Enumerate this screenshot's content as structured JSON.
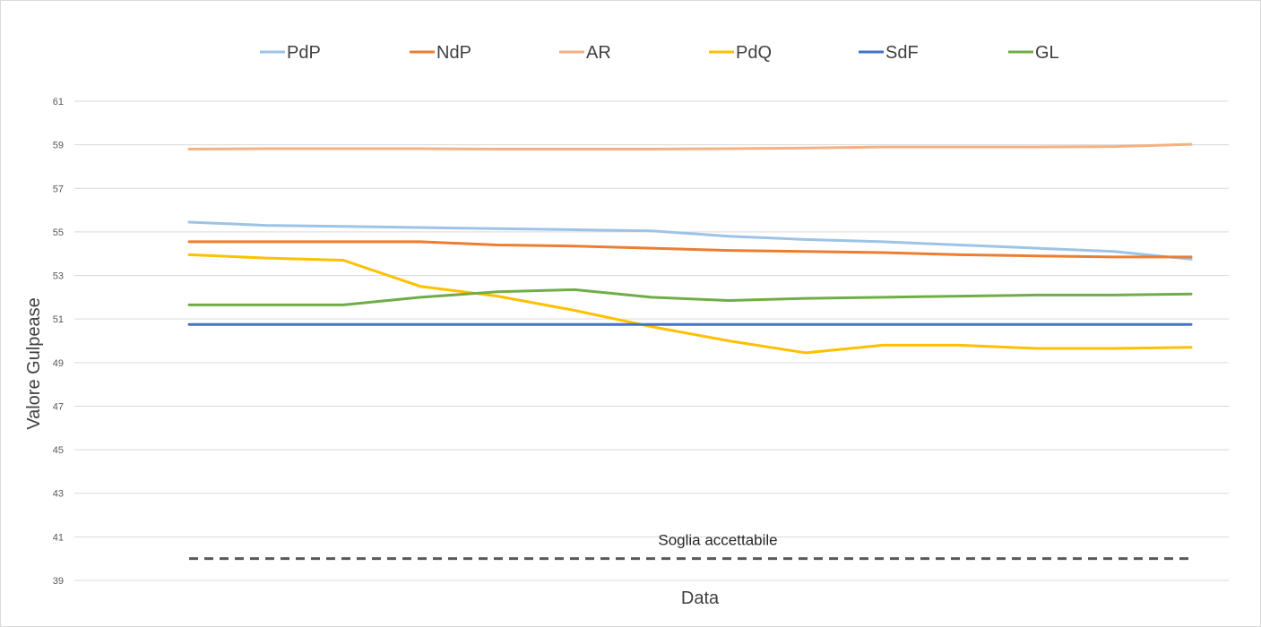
{
  "chart_data": {
    "type": "line",
    "title": "",
    "xlabel": "Data",
    "ylabel": "Valore Gulpease",
    "ylim": [
      39,
      61
    ],
    "yticks": [
      39,
      41,
      43,
      45,
      47,
      49,
      51,
      53,
      55,
      57,
      59,
      61
    ],
    "grid": "horizontal",
    "legend_position": "top",
    "x": [
      1,
      2,
      3,
      4,
      5,
      6,
      7,
      8,
      9,
      10,
      11,
      12,
      13,
      14
    ],
    "series": [
      {
        "name": "PdP",
        "color": "#9dc3e6",
        "values": [
          55.45,
          55.3,
          55.25,
          55.2,
          55.15,
          55.1,
          55.05,
          54.8,
          54.65,
          54.55,
          54.4,
          54.25,
          54.1,
          53.75
        ]
      },
      {
        "name": "NdP",
        "color": "#ed7d31",
        "values": [
          54.55,
          54.55,
          54.55,
          54.55,
          54.4,
          54.35,
          54.25,
          54.15,
          54.1,
          54.05,
          53.95,
          53.9,
          53.85,
          53.85
        ]
      },
      {
        "name": "AR",
        "color": "#f4b183",
        "values": [
          58.8,
          58.82,
          58.82,
          58.82,
          58.8,
          58.8,
          58.8,
          58.82,
          58.85,
          58.9,
          58.9,
          58.9,
          58.92,
          59.02
        ]
      },
      {
        "name": "PdQ",
        "color": "#ffc000",
        "values": [
          53.95,
          53.8,
          53.7,
          52.5,
          52.05,
          51.4,
          50.65,
          50.0,
          49.45,
          49.8,
          49.8,
          49.65,
          49.65,
          49.7
        ]
      },
      {
        "name": "SdF",
        "color": "#4472c4",
        "values": [
          50.75,
          50.75,
          50.75,
          50.75,
          50.75,
          50.75,
          50.75,
          50.75,
          50.75,
          50.75,
          50.75,
          50.75,
          50.75,
          50.75
        ]
      },
      {
        "name": "GL",
        "color": "#70ad47",
        "values": [
          51.65,
          51.65,
          51.65,
          52.0,
          52.25,
          52.35,
          52.0,
          51.85,
          51.95,
          52.0,
          52.05,
          52.1,
          52.1,
          52.15
        ]
      }
    ],
    "threshold": {
      "label": "Soglia accettabile",
      "value": 40,
      "color": "#595959"
    }
  }
}
